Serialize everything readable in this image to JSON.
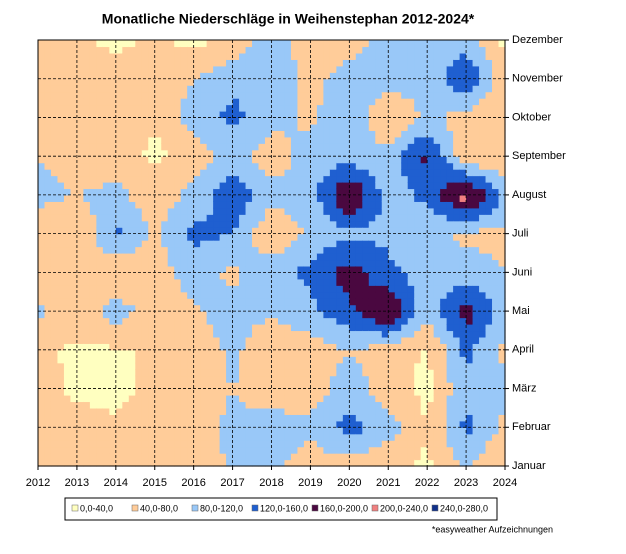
{
  "chart_data": {
    "type": "contour",
    "title": "Monatliche Niederschläge in Weihenstephan 2012-2024*",
    "footnote": "*easyweather Aufzeichnungen",
    "x": [
      2012,
      2013,
      2014,
      2015,
      2016,
      2017,
      2018,
      2019,
      2020,
      2021,
      2022,
      2023,
      2024
    ],
    "xlim": [
      2012,
      2024
    ],
    "xticks": [
      2012,
      2013,
      2014,
      2015,
      2016,
      2017,
      2018,
      2019,
      2020,
      2021,
      2022,
      2023,
      2024
    ],
    "y_categories": [
      "Januar",
      "Februar",
      "März",
      "April",
      "Mai",
      "Juni",
      "Juli",
      "August",
      "September",
      "Oktober",
      "November",
      "Dezember"
    ],
    "z": [
      [
        50,
        50,
        45,
        50,
        60,
        85,
        90,
        60,
        60,
        45,
        35,
        85,
        40
      ],
      [
        60,
        50,
        45,
        60,
        60,
        90,
        100,
        90,
        135,
        100,
        40,
        130,
        70
      ],
      [
        50,
        35,
        30,
        50,
        60,
        80,
        55,
        60,
        100,
        60,
        30,
        110,
        85
      ],
      [
        45,
        35,
        35,
        45,
        50,
        90,
        45,
        60,
        80,
        60,
        35,
        130,
        70
      ],
      [
        90,
        55,
        100,
        60,
        75,
        100,
        85,
        110,
        150,
        210,
        90,
        180,
        100
      ],
      [
        50,
        75,
        35,
        60,
        100,
        70,
        110,
        130,
        180,
        130,
        100,
        100,
        80
      ],
      [
        60,
        35,
        130,
        70,
        130,
        120,
        40,
        90,
        110,
        110,
        90,
        70,
        70
      ],
      [
        90,
        80,
        90,
        60,
        90,
        150,
        95,
        100,
        210,
        100,
        130,
        220,
        110
      ],
      [
        80,
        65,
        60,
        30,
        60,
        100,
        55,
        100,
        100,
        95,
        170,
        50,
        40
      ],
      [
        45,
        60,
        70,
        45,
        100,
        130,
        95,
        70,
        120,
        35,
        90,
        60,
        40
      ],
      [
        60,
        45,
        60,
        60,
        80,
        110,
        120,
        60,
        110,
        100,
        90,
        160,
        55
      ],
      [
        50,
        50,
        30,
        45,
        30,
        45,
        120,
        45,
        55,
        95,
        110,
        100,
        30
      ]
    ],
    "bands": [
      {
        "label": "0,0-40,0",
        "min": 0,
        "max": 40,
        "color": "#ffffc0"
      },
      {
        "label": "40,0-80,0",
        "min": 40,
        "max": 80,
        "color": "#ffcc99"
      },
      {
        "label": "80,0-120,0",
        "min": 80,
        "max": 120,
        "color": "#99c8f8"
      },
      {
        "label": "120,0-160,0",
        "min": 120,
        "max": 160,
        "color": "#1f5fd0"
      },
      {
        "label": "160,0-200,0",
        "min": 160,
        "max": 200,
        "color": "#4a0840"
      },
      {
        "label": "200,0-240,0",
        "min": 200,
        "max": 240,
        "color": "#f08080"
      },
      {
        "label": "240,0-280,0",
        "min": 240,
        "max": 280,
        "color": "#10308a"
      }
    ],
    "grid": true
  }
}
